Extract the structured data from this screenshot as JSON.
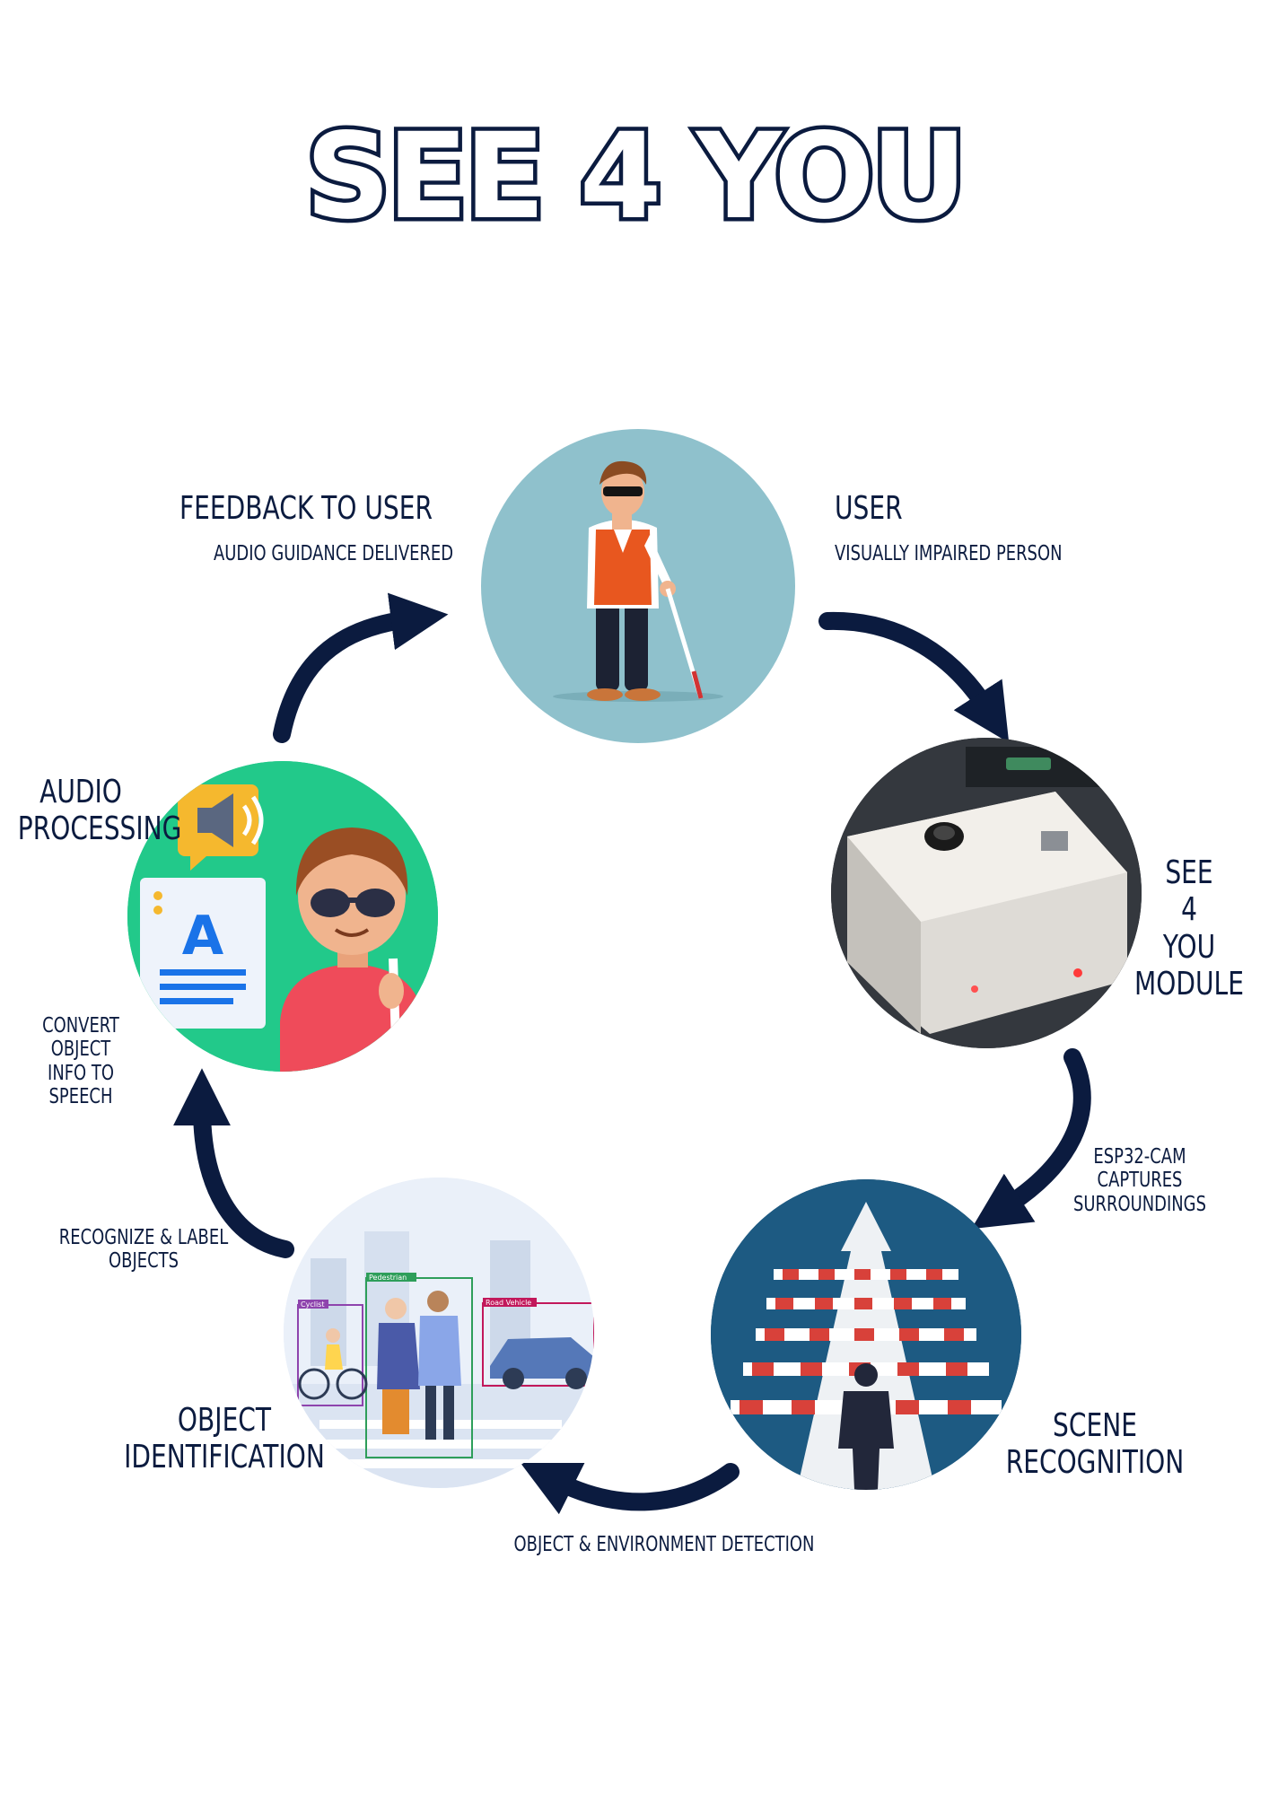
{
  "title": "SEE 4 YOU",
  "nodes": {
    "user": {
      "label": "USER",
      "sub": "VISUALLY IMPAIRED PERSON"
    },
    "module": {
      "line1": "SEE",
      "line2": "4",
      "line3": "YOU",
      "line4": "MODULE"
    },
    "scene": {
      "line1": "SCENE",
      "line2": "RECOGNITION"
    },
    "object": {
      "line1": "OBJECT",
      "line2": "IDENTIFICATION"
    },
    "audio": {
      "line1": "AUDIO",
      "line2": "PROCESSING",
      "sub1": "CONVERT OBJECT",
      "sub2": "INFO TO SPEECH"
    },
    "feedback": {
      "label": "FEEDBACK TO USER",
      "sub": "AUDIO GUIDANCE DELIVERED"
    }
  },
  "arrows": {
    "module_to_scene": {
      "line1": "ESP32-CAM",
      "line2": "CAPTURES",
      "line3": "SURROUNDINGS"
    },
    "scene_to_object": "OBJECT & ENVIRONMENT DETECTION",
    "object_to_audio": {
      "line1": "RECOGNIZE & LABEL",
      "line2": "OBJECTS"
    }
  },
  "detection_tags": {
    "cyclist": "Cyclist",
    "pedestrian": "Pedestrian",
    "vehicle": "Road Vehicle"
  },
  "colors": {
    "navy": "#0b1b3f",
    "user_bg": "#8fc1cc",
    "audio_bg": "#22c98a",
    "scene_bg": "#1a4e72"
  }
}
